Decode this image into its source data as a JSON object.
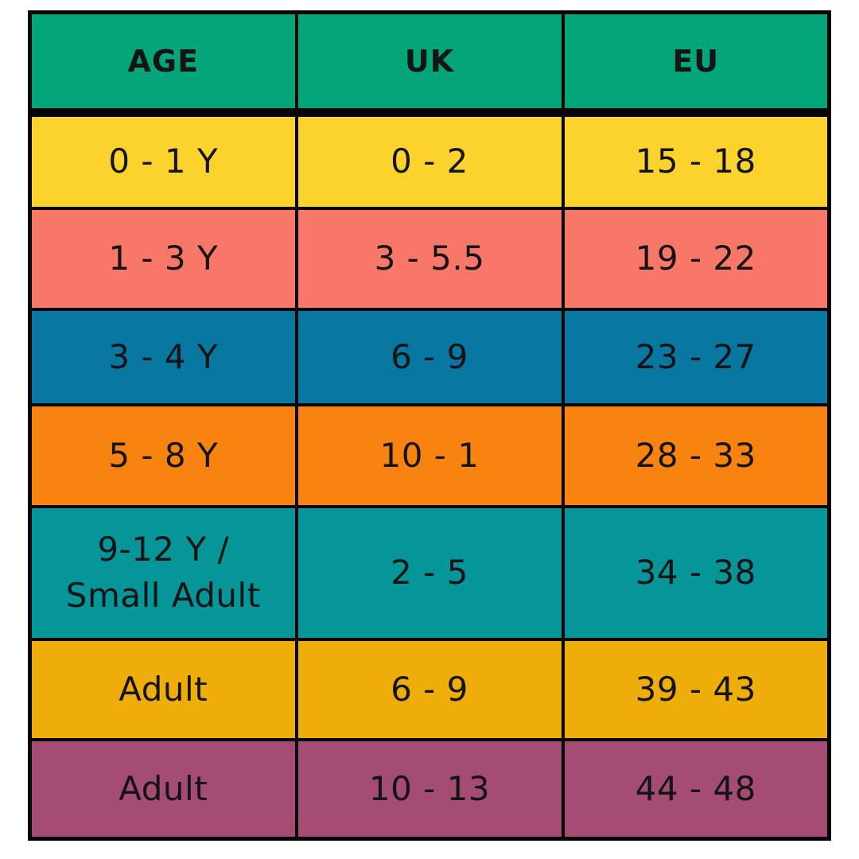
{
  "table": {
    "header_bg": "#04A579",
    "headers": [
      {
        "label": "AGE"
      },
      {
        "label": "UK"
      },
      {
        "label": "EU"
      }
    ],
    "rows": [
      {
        "age": "0 - 1 Y",
        "uk": "0 - 2",
        "eu": "15 - 18",
        "bg": "#FCD32D"
      },
      {
        "age": "1 - 3 Y",
        "uk": "3 - 5.5",
        "eu": "19 - 22",
        "bg": "#F97768"
      },
      {
        "age": "3 - 4 Y",
        "uk": "6 - 9",
        "eu": "23 - 27",
        "bg": "#0878A3"
      },
      {
        "age": "5 - 8 Y",
        "uk": "10 - 1",
        "eu": "28 - 33",
        "bg": "#F9830F"
      },
      {
        "age": "9-12 Y /\nSmall Adult",
        "uk": "2 - 5",
        "eu": "34 - 38",
        "bg": "#069598"
      },
      {
        "age": "Adult",
        "uk": "6 - 9",
        "eu": "39 - 43",
        "bg": "#EFAD0A"
      },
      {
        "age": "Adult",
        "uk": "10 - 13",
        "eu": "44 - 48",
        "bg": "#A54C74"
      }
    ]
  },
  "chart_data": {
    "type": "table",
    "columns": [
      "AGE",
      "UK",
      "EU"
    ],
    "rows": [
      [
        "0 - 1 Y",
        "0 - 2",
        "15 - 18"
      ],
      [
        "1 - 3 Y",
        "3 - 5.5",
        "19 - 22"
      ],
      [
        "3 - 4 Y",
        "6 - 9",
        "23 - 27"
      ],
      [
        "5 - 8 Y",
        "10 - 1",
        "28 - 33"
      ],
      [
        "9-12 Y / Small Adult",
        "2 - 5",
        "34 - 38"
      ],
      [
        "Adult",
        "6 - 9",
        "39 - 43"
      ],
      [
        "Adult",
        "10 - 13",
        "44 - 48"
      ]
    ],
    "header_color": "#04A579",
    "row_colors": [
      "#FCD32D",
      "#F97768",
      "#0878A3",
      "#F9830F",
      "#069598",
      "#EFAD0A",
      "#A54C74"
    ],
    "text_color": "#141414",
    "grid_color": "#050505",
    "title": ""
  }
}
